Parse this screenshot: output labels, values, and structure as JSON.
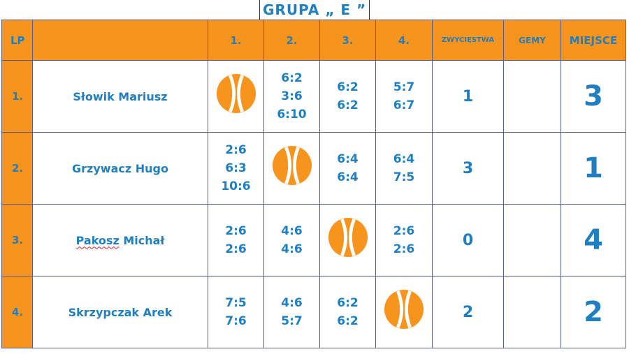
{
  "title": "GRUPA „ E ”",
  "headers": {
    "lp": "LP",
    "col1": "1.",
    "col2": "2.",
    "col3": "3.",
    "col4": "4.",
    "wins": "ZWYCIĘSTWA",
    "games": "GEMY",
    "place": "MIEJSCE"
  },
  "colors": {
    "accent": "#f7941d",
    "text": "#1f7fc0",
    "border": "#555e8f"
  },
  "rows": [
    {
      "lp": "1.",
      "name_first": "Słowik",
      "name_last": "Mariusz",
      "scores": [
        null,
        [
          "6:2",
          "3:6",
          "6:10"
        ],
        [
          "6:2",
          "6:2"
        ],
        [
          "5:7",
          "6:7"
        ]
      ],
      "wins": "1",
      "games": "",
      "place": "3"
    },
    {
      "lp": "2.",
      "name_first": "Grzywacz",
      "name_last": "Hugo",
      "scores": [
        [
          "2:6",
          "6:3",
          "10:6"
        ],
        null,
        [
          "6:4",
          "6:4"
        ],
        [
          "6:4",
          "7:5"
        ]
      ],
      "wins": "3",
      "games": "",
      "place": "1"
    },
    {
      "lp": "3.",
      "name_first": "Pakosz",
      "name_last": "Michał",
      "scores": [
        [
          "2:6",
          "2:6"
        ],
        [
          "4:6",
          "4:6"
        ],
        null,
        [
          "2:6",
          "2:6"
        ]
      ],
      "wins": "0",
      "games": "",
      "place": "4"
    },
    {
      "lp": "4.",
      "name_first": "Skrzypczak",
      "name_last": "Arek",
      "scores": [
        [
          "7:5",
          "7:6"
        ],
        [
          "4:6",
          "5:7"
        ],
        [
          "6:2",
          "6:2"
        ],
        null
      ],
      "wins": "2",
      "games": "",
      "place": "2"
    }
  ]
}
